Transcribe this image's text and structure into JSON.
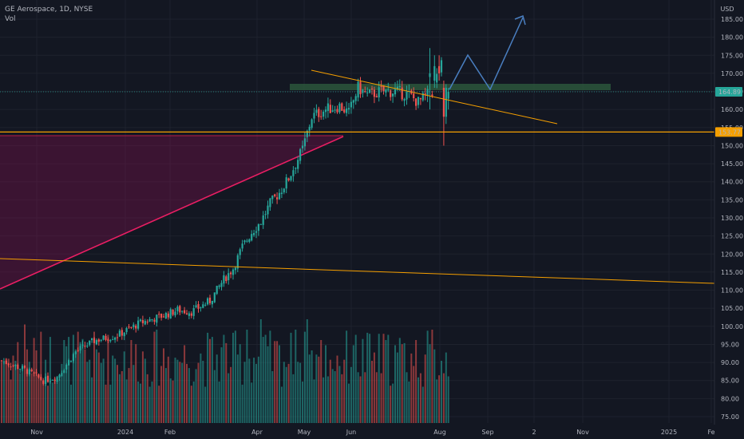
{
  "legend": {
    "symbol_line": "GE Aerospace, 1D, NYSE",
    "volume_label": "Vol"
  },
  "currency": "USD",
  "colors": {
    "up": "#26a69a",
    "down": "#ef5350",
    "background": "#131722",
    "grid": "#1e222d",
    "trend_pink": "#e91e63",
    "orange": "#f59f00",
    "projection": "#4a7fc1",
    "zone_green": "#2d5a3d"
  },
  "chart_data": {
    "type": "candlestick",
    "y_axis": {
      "ticks": [
        75,
        80,
        85,
        90,
        95,
        100,
        105,
        110,
        115,
        120,
        125,
        130,
        135,
        140,
        145,
        150,
        155,
        160,
        165,
        170,
        175,
        180,
        185
      ],
      "tick_labels": [
        "75.00",
        "80.00",
        "85.00",
        "90.00",
        "95.00",
        "100.00",
        "105.00",
        "110.00",
        "115.00",
        "120.00",
        "125.00",
        "130.00",
        "135.00",
        "140.00",
        "145.00",
        "150.00",
        "155.00",
        "160.00",
        "165.00",
        "170.00",
        "175.00",
        "180.00",
        "185.00"
      ],
      "ylim": [
        73,
        190
      ]
    },
    "x_axis": {
      "labels": [
        "Nov",
        "2024",
        "Feb",
        "Apr",
        "May",
        "Jun",
        "Aug",
        "Sep",
        "2",
        "Nov",
        "2025",
        "Fe"
      ]
    },
    "price_markers": [
      {
        "label": "164.89",
        "value": 164.89,
        "color": "#26a69a"
      },
      {
        "label": "153.77",
        "value": 153.77,
        "color": "#f59f00"
      }
    ],
    "candles": [],
    "volumes": []
  }
}
